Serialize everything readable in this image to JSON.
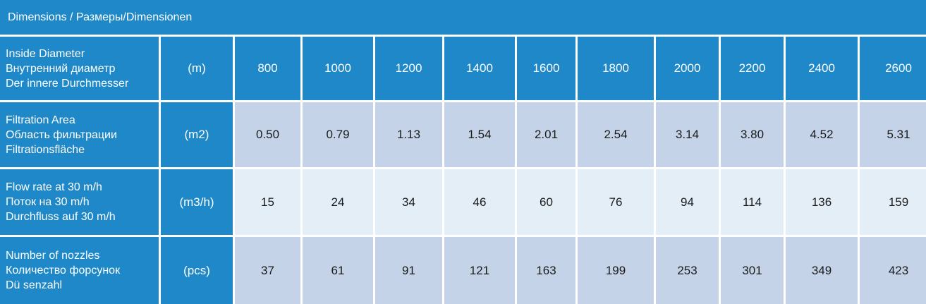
{
  "title": "Dimensions / Размеры/Dimensionen",
  "rows": [
    {
      "label": [
        "Inside Diameter",
        "Внутренний диаметр",
        "Der innere Durchmesser"
      ],
      "unit": "(m)",
      "values": [
        "800",
        "1000",
        "1200",
        "1400",
        "1600",
        "1800",
        "2000",
        "2200",
        "2400",
        "2600"
      ]
    },
    {
      "label": [
        "Filtration Area",
        "Область фильтрации",
        "Filtrationsfläche"
      ],
      "unit": "(m2)",
      "values": [
        "0.50",
        "0.79",
        "1.13",
        "1.54",
        "2.01",
        "2.54",
        "3.14",
        "3.80",
        "4.52",
        "5.31"
      ]
    },
    {
      "label": [
        "Flow rate at 30 m/h",
        "Поток на 30 m/h",
        "Durchfluss auf 30 m/h"
      ],
      "unit": "(m3/h)",
      "values": [
        "15",
        "24",
        "34",
        "46",
        "60",
        "76",
        "94",
        "114",
        "136",
        "159"
      ]
    },
    {
      "label": [
        "Number of nozzles",
        "Количество форсунок",
        "Dü senzahl"
      ],
      "unit": "(pcs)",
      "values": [
        "37",
        "61",
        "91",
        "121",
        "163",
        "199",
        "253",
        "301",
        "349",
        "423"
      ]
    }
  ]
}
